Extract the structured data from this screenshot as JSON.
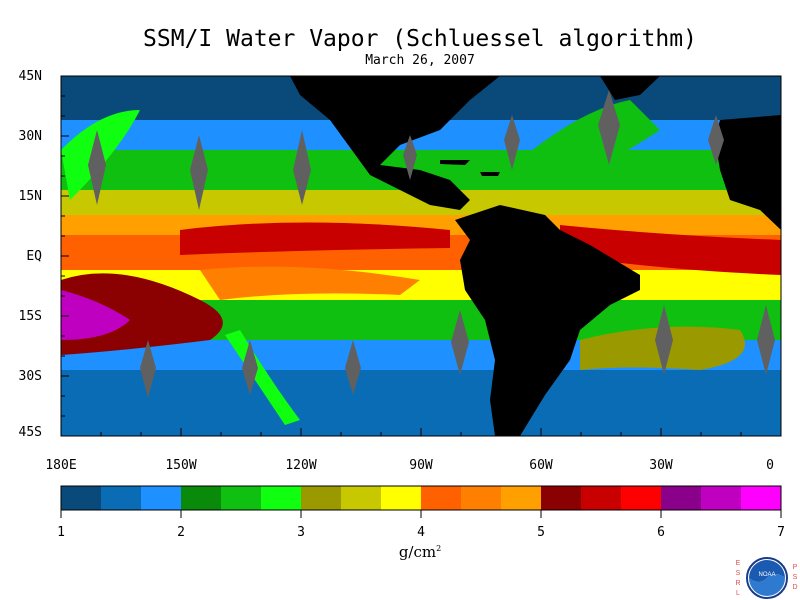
{
  "title": "SSM/I Water Vapor (Schluessel algorithm)",
  "date": "March 26, 2007",
  "lat_labels": [
    "45N",
    "30N",
    "15N",
    "EQ",
    "15S",
    "30S",
    "45S"
  ],
  "lon_labels": [
    "180E",
    "150W",
    "120W",
    "90W",
    "60W",
    "30W",
    "0"
  ],
  "colorbar": {
    "tick_labels": [
      "1",
      "2",
      "3",
      "4",
      "5",
      "6",
      "7"
    ],
    "units": "g/cm",
    "units_exp": "2",
    "colors": [
      "#0a4a7a",
      "#0a6cb5",
      "#1e90ff",
      "#0a8a0a",
      "#10c010",
      "#10ff10",
      "#9a9a00",
      "#c8c800",
      "#ffff00",
      "#ff6000",
      "#ff8000",
      "#ffa000",
      "#8b0000",
      "#c80000",
      "#ff0000",
      "#8b008b",
      "#c000c0",
      "#ff00ff"
    ]
  },
  "logo": {
    "left_letters": [
      "E",
      "S",
      "R",
      "L"
    ],
    "right_letters": [
      "P",
      "S",
      "D"
    ],
    "emblem_text": "NOAA"
  },
  "colors": {
    "land": "#000000",
    "background": "#ffffff",
    "missing": "#606060"
  }
}
